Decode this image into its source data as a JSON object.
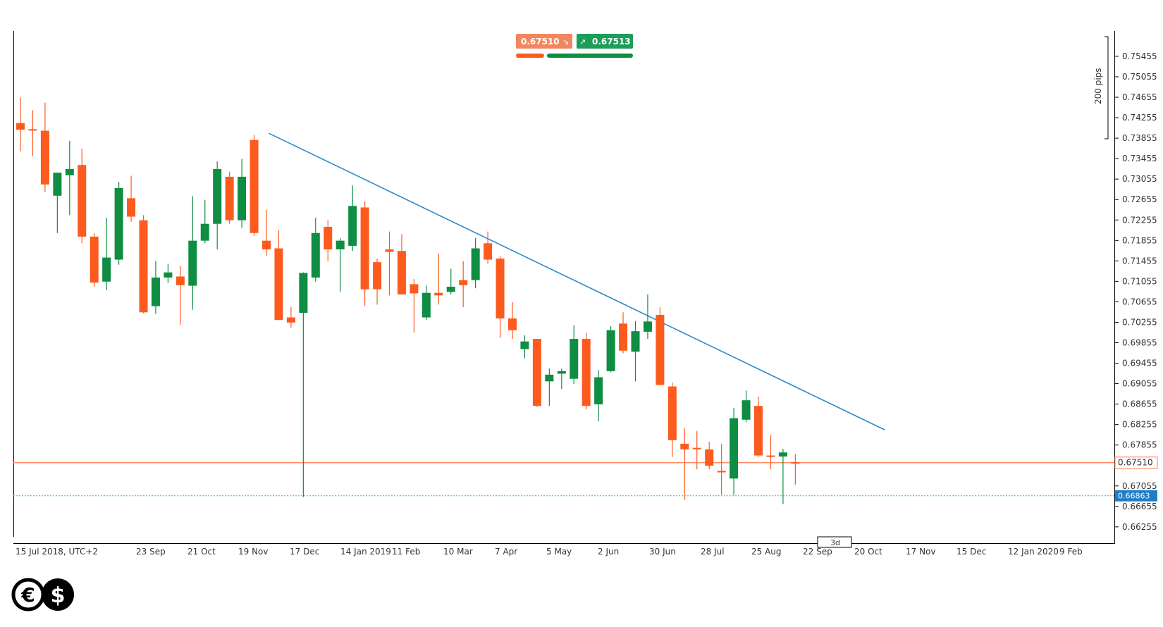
{
  "chart_data": {
    "type": "candlestick",
    "timezone_label": "15 Jul 2018, UTC+2",
    "x_ticks": [
      "23 Sep",
      "21 Oct",
      "19 Nov",
      "17 Dec",
      "14 Jan 2019",
      "11 Feb",
      "10 Mar",
      "7 Apr",
      "5 May",
      "2 Jun",
      "30 Jun",
      "28 Jul",
      "25 Aug",
      "22 Sep",
      "20 Oct",
      "17 Nov",
      "15 Dec",
      "12 Jan 2020",
      "9 Feb"
    ],
    "y_ticks": [
      "0.75455",
      "0.75055",
      "0.74655",
      "0.74255",
      "0.73855",
      "0.73455",
      "0.73055",
      "0.72655",
      "0.72255",
      "0.71855",
      "0.71455",
      "0.71055",
      "0.70655",
      "0.70255",
      "0.69855",
      "0.69455",
      "0.69055",
      "0.68655",
      "0.68255",
      "0.67855",
      "0.67055",
      "0.66655",
      "0.66255"
    ],
    "ylim": [
      0.6595,
      0.7595
    ],
    "period_label": "3d",
    "pips_label": "200 pips",
    "bid": "0.67510",
    "ask": "0.67513",
    "current_price_label": "0.67510",
    "support_label": "0.66863",
    "support_level": 0.66863,
    "current_level": 0.6751,
    "trendline": {
      "from": [
        21,
        0.7395
      ],
      "to": [
        70,
        0.6815
      ]
    },
    "colors": {
      "up": "#0e8d43",
      "down": "#fd5a1e",
      "trendline": "#2c8ac8",
      "current_line": "#fd7a4a",
      "support_line": "#2cb3d8",
      "support_tag": "#1e7dc8"
    },
    "candles": [
      {
        "o": 0.7415,
        "h": 0.7465,
        "l": 0.736,
        "c": 0.7402
      },
      {
        "o": 0.7403,
        "h": 0.744,
        "l": 0.735,
        "c": 0.7402
      },
      {
        "o": 0.74,
        "h": 0.7455,
        "l": 0.728,
        "c": 0.7295
      },
      {
        "o": 0.7273,
        "h": 0.7318,
        "l": 0.72,
        "c": 0.7318
      },
      {
        "o": 0.7313,
        "h": 0.738,
        "l": 0.7235,
        "c": 0.7325
      },
      {
        "o": 0.7333,
        "h": 0.7365,
        "l": 0.718,
        "c": 0.7193
      },
      {
        "o": 0.7193,
        "h": 0.72,
        "l": 0.7095,
        "c": 0.7103
      },
      {
        "o": 0.7105,
        "h": 0.723,
        "l": 0.7088,
        "c": 0.7152
      },
      {
        "o": 0.7148,
        "h": 0.73,
        "l": 0.7138,
        "c": 0.7288
      },
      {
        "o": 0.7268,
        "h": 0.7312,
        "l": 0.7222,
        "c": 0.7232
      },
      {
        "o": 0.7225,
        "h": 0.7235,
        "l": 0.7043,
        "c": 0.7045
      },
      {
        "o": 0.7057,
        "h": 0.7145,
        "l": 0.7042,
        "c": 0.7113
      },
      {
        "o": 0.7113,
        "h": 0.714,
        "l": 0.7102,
        "c": 0.7123
      },
      {
        "o": 0.7115,
        "h": 0.7135,
        "l": 0.702,
        "c": 0.7098
      },
      {
        "o": 0.7097,
        "h": 0.7272,
        "l": 0.705,
        "c": 0.7185
      },
      {
        "o": 0.7185,
        "h": 0.7265,
        "l": 0.718,
        "c": 0.7218
      },
      {
        "o": 0.7218,
        "h": 0.734,
        "l": 0.7168,
        "c": 0.7325
      },
      {
        "o": 0.731,
        "h": 0.732,
        "l": 0.7218,
        "c": 0.7225
      },
      {
        "o": 0.7225,
        "h": 0.7345,
        "l": 0.721,
        "c": 0.731
      },
      {
        "o": 0.7382,
        "h": 0.7392,
        "l": 0.7195,
        "c": 0.72
      },
      {
        "o": 0.7185,
        "h": 0.7245,
        "l": 0.7155,
        "c": 0.7168
      },
      {
        "o": 0.717,
        "h": 0.7205,
        "l": 0.703,
        "c": 0.703
      },
      {
        "o": 0.7035,
        "h": 0.7055,
        "l": 0.7015,
        "c": 0.7025
      },
      {
        "o": 0.7044,
        "h": 0.7123,
        "l": 0.6684,
        "c": 0.7122
      },
      {
        "o": 0.7113,
        "h": 0.723,
        "l": 0.7105,
        "c": 0.72
      },
      {
        "o": 0.7212,
        "h": 0.7225,
        "l": 0.7145,
        "c": 0.7168
      },
      {
        "o": 0.7168,
        "h": 0.719,
        "l": 0.7085,
        "c": 0.7185
      },
      {
        "o": 0.7175,
        "h": 0.7293,
        "l": 0.7165,
        "c": 0.7253
      },
      {
        "o": 0.725,
        "h": 0.7262,
        "l": 0.7058,
        "c": 0.709
      },
      {
        "o": 0.7143,
        "h": 0.715,
        "l": 0.706,
        "c": 0.709
      },
      {
        "o": 0.7168,
        "h": 0.7203,
        "l": 0.7078,
        "c": 0.7163
      },
      {
        "o": 0.7165,
        "h": 0.7198,
        "l": 0.708,
        "c": 0.708
      },
      {
        "o": 0.71,
        "h": 0.711,
        "l": 0.7005,
        "c": 0.7082
      },
      {
        "o": 0.7035,
        "h": 0.7097,
        "l": 0.703,
        "c": 0.7083
      },
      {
        "o": 0.7083,
        "h": 0.716,
        "l": 0.706,
        "c": 0.7078
      },
      {
        "o": 0.7085,
        "h": 0.713,
        "l": 0.708,
        "c": 0.7095
      },
      {
        "o": 0.7108,
        "h": 0.7145,
        "l": 0.7055,
        "c": 0.7098
      },
      {
        "o": 0.7108,
        "h": 0.719,
        "l": 0.7092,
        "c": 0.717
      },
      {
        "o": 0.718,
        "h": 0.7203,
        "l": 0.714,
        "c": 0.7148
      },
      {
        "o": 0.715,
        "h": 0.7155,
        "l": 0.6995,
        "c": 0.7033
      },
      {
        "o": 0.7033,
        "h": 0.7065,
        "l": 0.6993,
        "c": 0.701
      },
      {
        "o": 0.6973,
        "h": 0.7,
        "l": 0.6955,
        "c": 0.6988
      },
      {
        "o": 0.6993,
        "h": 0.6993,
        "l": 0.686,
        "c": 0.6862
      },
      {
        "o": 0.691,
        "h": 0.6935,
        "l": 0.6862,
        "c": 0.6923
      },
      {
        "o": 0.6925,
        "h": 0.6935,
        "l": 0.6895,
        "c": 0.693
      },
      {
        "o": 0.6915,
        "h": 0.702,
        "l": 0.6905,
        "c": 0.6993
      },
      {
        "o": 0.6993,
        "h": 0.7005,
        "l": 0.6855,
        "c": 0.6862
      },
      {
        "o": 0.6865,
        "h": 0.6932,
        "l": 0.6832,
        "c": 0.6918
      },
      {
        "o": 0.693,
        "h": 0.7018,
        "l": 0.6928,
        "c": 0.701
      },
      {
        "o": 0.7023,
        "h": 0.7045,
        "l": 0.6965,
        "c": 0.697
      },
      {
        "o": 0.6968,
        "h": 0.7028,
        "l": 0.691,
        "c": 0.7008
      },
      {
        "o": 0.7007,
        "h": 0.708,
        "l": 0.6993,
        "c": 0.7027
      },
      {
        "o": 0.704,
        "h": 0.7055,
        "l": 0.6902,
        "c": 0.6903
      },
      {
        "o": 0.69,
        "h": 0.6908,
        "l": 0.6762,
        "c": 0.6795
      },
      {
        "o": 0.6788,
        "h": 0.6818,
        "l": 0.6678,
        "c": 0.6777
      },
      {
        "o": 0.678,
        "h": 0.6813,
        "l": 0.6738,
        "c": 0.6778
      },
      {
        "o": 0.6777,
        "h": 0.6792,
        "l": 0.6738,
        "c": 0.6745
      },
      {
        "o": 0.6735,
        "h": 0.6788,
        "l": 0.6688,
        "c": 0.6732
      },
      {
        "o": 0.672,
        "h": 0.6858,
        "l": 0.6688,
        "c": 0.6838
      },
      {
        "o": 0.6835,
        "h": 0.6892,
        "l": 0.683,
        "c": 0.6873
      },
      {
        "o": 0.6862,
        "h": 0.688,
        "l": 0.6762,
        "c": 0.6765
      },
      {
        "o": 0.6765,
        "h": 0.6805,
        "l": 0.6738,
        "c": 0.6764
      },
      {
        "o": 0.6763,
        "h": 0.6778,
        "l": 0.667,
        "c": 0.6771
      },
      {
        "o": 0.6752,
        "h": 0.6768,
        "l": 0.6708,
        "c": 0.6751
      }
    ]
  },
  "logo": {
    "currencies": [
      "€",
      "$"
    ]
  }
}
